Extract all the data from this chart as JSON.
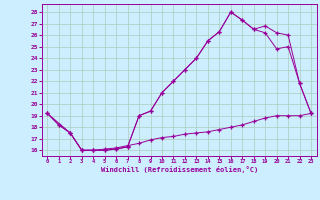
{
  "xlabel": "Windchill (Refroidissement éolien,°C)",
  "bg_color": "#cceeff",
  "grid_color": "#aaccbb",
  "line_color": "#990099",
  "xlim": [
    -0.5,
    23.5
  ],
  "ylim": [
    15.5,
    28.7
  ],
  "xticks": [
    0,
    1,
    2,
    3,
    4,
    5,
    6,
    7,
    8,
    9,
    10,
    11,
    12,
    13,
    14,
    15,
    16,
    17,
    18,
    19,
    20,
    21,
    22,
    23
  ],
  "yticks": [
    16,
    17,
    18,
    19,
    20,
    21,
    22,
    23,
    24,
    25,
    26,
    27,
    28
  ],
  "line1_x": [
    0,
    1,
    2,
    3,
    4,
    5,
    6,
    7,
    8,
    9,
    10,
    11,
    12,
    13,
    14,
    15,
    16,
    17,
    18,
    19,
    20,
    21,
    22,
    23
  ],
  "line1_y": [
    19.2,
    18.2,
    17.5,
    16.0,
    16.0,
    16.0,
    16.1,
    16.3,
    19.0,
    19.4,
    21.0,
    22.0,
    23.0,
    24.0,
    25.5,
    26.3,
    28.0,
    27.3,
    26.5,
    26.2,
    24.8,
    25.0,
    21.8,
    19.2
  ],
  "line2_x": [
    0,
    1,
    2,
    3,
    4,
    5,
    6,
    7,
    8,
    9,
    10,
    11,
    12,
    13,
    14,
    15,
    16,
    17,
    18,
    19,
    20,
    21,
    22,
    23
  ],
  "line2_y": [
    19.2,
    18.2,
    17.5,
    16.0,
    16.0,
    16.0,
    16.1,
    16.3,
    19.0,
    19.4,
    21.0,
    22.0,
    23.0,
    24.0,
    25.5,
    26.3,
    28.0,
    27.3,
    26.5,
    26.8,
    26.2,
    26.0,
    21.8,
    19.2
  ],
  "line3_x": [
    0,
    2,
    3,
    4,
    5,
    6,
    7,
    8,
    9,
    10,
    11,
    12,
    13,
    14,
    15,
    16,
    17,
    18,
    19,
    20,
    21,
    22,
    23
  ],
  "line3_y": [
    19.2,
    17.5,
    16.0,
    16.0,
    16.1,
    16.2,
    16.4,
    16.6,
    16.9,
    17.1,
    17.2,
    17.4,
    17.5,
    17.6,
    17.8,
    18.0,
    18.2,
    18.5,
    18.8,
    19.0,
    19.0,
    19.0,
    19.2
  ]
}
